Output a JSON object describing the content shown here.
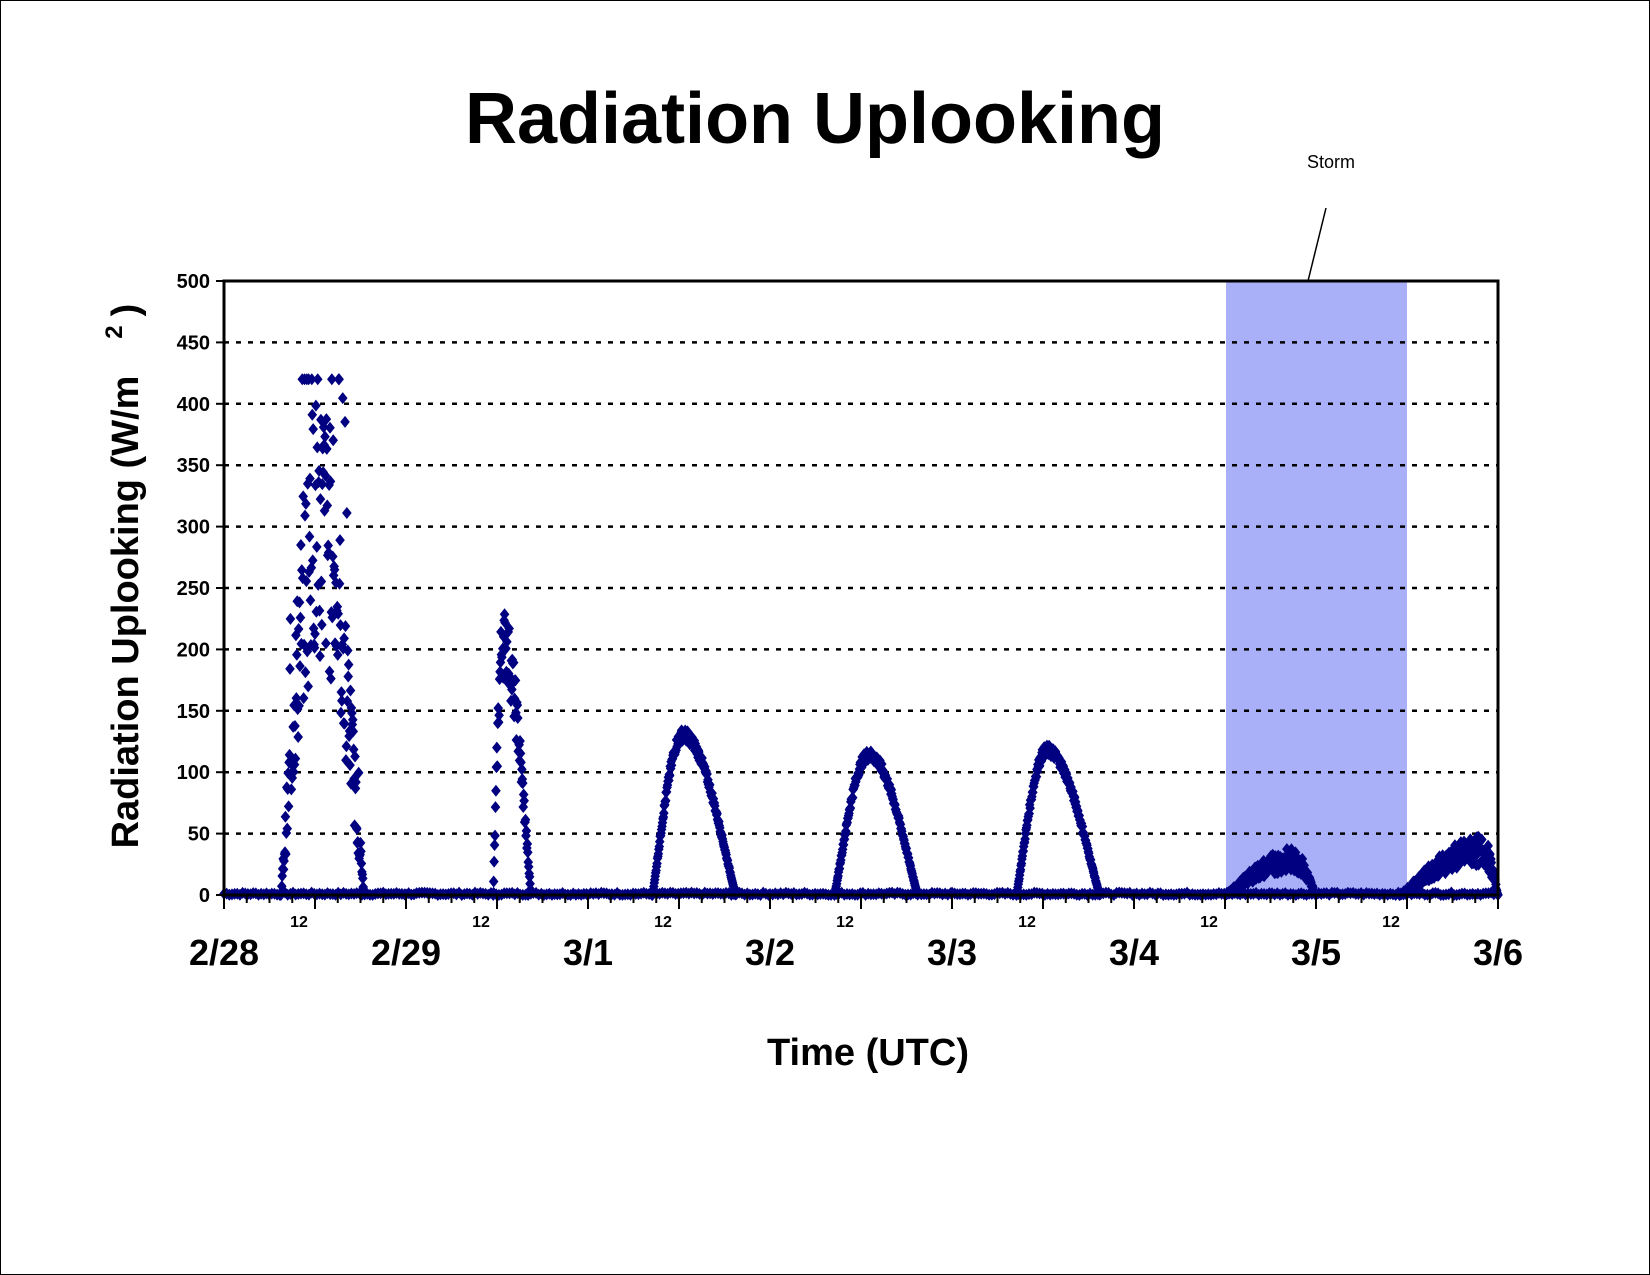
{
  "chart_data": {
    "type": "scatter",
    "title": "Radiation Uplooking",
    "xlabel": "Time (UTC)",
    "ylabel": "Radiation Uplooking (W/m",
    "ylabel_superscript": "2",
    "ylabel_close": ")",
    "ylim": [
      0,
      500
    ],
    "yticks": [
      0,
      50,
      100,
      150,
      200,
      250,
      300,
      350,
      400,
      450,
      500
    ],
    "xlim": [
      "2/28 00:00",
      "3/6 00:00"
    ],
    "date_ticks": [
      "2/28",
      "2/29",
      "3/1",
      "3/2",
      "3/3",
      "3/4",
      "3/5",
      "3/6"
    ],
    "hour_ticks": [
      "12",
      "12",
      "12",
      "12",
      "12",
      "12",
      "12"
    ],
    "grid": "horizontal dotted",
    "marker": "diamond",
    "series_color": "#000080",
    "shaded_region": {
      "label": "Storm",
      "x_start": "3/4 12:00",
      "x_end": "3/5 12:00",
      "color": "#aab0f8"
    },
    "annotation": {
      "text": "Storm"
    },
    "series": [
      {
        "day_peaks": [
          {
            "day": "2/28",
            "start_hour": 7.5,
            "peak_hour": 12.5,
            "end_hour": 18.5,
            "peak": 420,
            "typical_range": [
              150,
              260
            ]
          },
          {
            "day": "2/29",
            "start_hour": 11.5,
            "peak_hour": 12.8,
            "end_hour": 16.5,
            "peak": 235
          },
          {
            "day": "3/1",
            "start_hour": 8.5,
            "peak_hour": 12.5,
            "end_hour": 19.5,
            "peak": 135
          },
          {
            "day": "3/2",
            "start_hour": 8.5,
            "peak_hour": 13,
            "end_hour": 19.5,
            "peak": 118
          },
          {
            "day": "3/3",
            "start_hour": 8.5,
            "peak_hour": 12.5,
            "end_hour": 19.5,
            "peak": 122
          },
          {
            "day": "3/4",
            "start_hour": 12,
            "peak_hour": 21,
            "end_hour": 24,
            "peak": 38
          },
          {
            "day": "3/5",
            "start_hour": 11,
            "peak_hour": 22,
            "end_hour": 24,
            "peak": 48
          }
        ]
      }
    ]
  }
}
